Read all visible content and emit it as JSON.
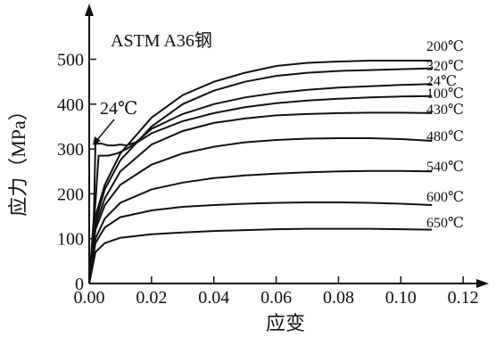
{
  "chart_data": {
    "type": "line",
    "title": "ASTM A36钢",
    "xlabel": "应变",
    "ylabel": "应力（MPa）",
    "xlim": [
      0,
      0.13
    ],
    "ylim": [
      0,
      560
    ],
    "x_ticks": [
      "0.00",
      "0.02",
      "0.04",
      "0.06",
      "0.08",
      "0.10",
      "0.12"
    ],
    "y_ticks": [
      "0",
      "100",
      "200",
      "300",
      "400",
      "500"
    ],
    "annotation": "24℃",
    "series": [
      {
        "name": "200℃",
        "points": [
          [
            0,
            0
          ],
          [
            0.002,
            150
          ],
          [
            0.005,
            220
          ],
          [
            0.01,
            290
          ],
          [
            0.02,
            370
          ],
          [
            0.03,
            420
          ],
          [
            0.04,
            450
          ],
          [
            0.05,
            470
          ],
          [
            0.06,
            485
          ],
          [
            0.07,
            492
          ],
          [
            0.08,
            495
          ],
          [
            0.09,
            497
          ],
          [
            0.1,
            497
          ],
          [
            0.11,
            497
          ]
        ]
      },
      {
        "name": "320℃",
        "points": [
          [
            0,
            0
          ],
          [
            0.002,
            140
          ],
          [
            0.005,
            210
          ],
          [
            0.01,
            275
          ],
          [
            0.02,
            350
          ],
          [
            0.03,
            400
          ],
          [
            0.04,
            430
          ],
          [
            0.05,
            450
          ],
          [
            0.06,
            463
          ],
          [
            0.07,
            470
          ],
          [
            0.08,
            474
          ],
          [
            0.09,
            476
          ],
          [
            0.1,
            478
          ],
          [
            0.11,
            480
          ]
        ]
      },
      {
        "name": "24℃",
        "points": [
          [
            0,
            0
          ],
          [
            0.0015,
            150
          ],
          [
            0.002,
            312
          ],
          [
            0.004,
            312
          ],
          [
            0.006,
            308
          ],
          [
            0.008,
            308
          ],
          [
            0.01,
            310
          ],
          [
            0.012,
            308
          ],
          [
            0.015,
            315
          ],
          [
            0.02,
            345
          ],
          [
            0.03,
            378
          ],
          [
            0.04,
            400
          ],
          [
            0.05,
            415
          ],
          [
            0.06,
            425
          ],
          [
            0.07,
            432
          ],
          [
            0.08,
            437
          ],
          [
            0.09,
            440
          ],
          [
            0.1,
            443
          ],
          [
            0.11,
            445
          ]
        ]
      },
      {
        "name": "100℃",
        "points": [
          [
            0,
            0
          ],
          [
            0.002,
            180
          ],
          [
            0.003,
            285
          ],
          [
            0.006,
            285
          ],
          [
            0.009,
            290
          ],
          [
            0.012,
            300
          ],
          [
            0.02,
            335
          ],
          [
            0.03,
            362
          ],
          [
            0.04,
            380
          ],
          [
            0.05,
            393
          ],
          [
            0.06,
            402
          ],
          [
            0.07,
            408
          ],
          [
            0.08,
            412
          ],
          [
            0.09,
            415
          ],
          [
            0.1,
            417
          ],
          [
            0.11,
            418
          ]
        ]
      },
      {
        "name": "430℃",
        "points": [
          [
            0,
            0
          ],
          [
            0.002,
            130
          ],
          [
            0.005,
            190
          ],
          [
            0.01,
            250
          ],
          [
            0.02,
            310
          ],
          [
            0.03,
            340
          ],
          [
            0.04,
            358
          ],
          [
            0.05,
            368
          ],
          [
            0.06,
            375
          ],
          [
            0.07,
            378
          ],
          [
            0.08,
            380
          ],
          [
            0.09,
            381
          ],
          [
            0.1,
            381
          ],
          [
            0.11,
            380
          ]
        ]
      },
      {
        "name": "480℃",
        "points": [
          [
            0,
            0
          ],
          [
            0.002,
            120
          ],
          [
            0.005,
            175
          ],
          [
            0.01,
            220
          ],
          [
            0.02,
            265
          ],
          [
            0.03,
            290
          ],
          [
            0.04,
            305
          ],
          [
            0.05,
            315
          ],
          [
            0.06,
            320
          ],
          [
            0.07,
            323
          ],
          [
            0.08,
            324
          ],
          [
            0.09,
            324
          ],
          [
            0.1,
            322
          ],
          [
            0.11,
            318
          ]
        ]
      },
      {
        "name": "540℃",
        "points": [
          [
            0,
            0
          ],
          [
            0.002,
            100
          ],
          [
            0.005,
            145
          ],
          [
            0.01,
            180
          ],
          [
            0.02,
            210
          ],
          [
            0.03,
            225
          ],
          [
            0.04,
            235
          ],
          [
            0.05,
            241
          ],
          [
            0.06,
            245
          ],
          [
            0.07,
            248
          ],
          [
            0.08,
            250
          ],
          [
            0.09,
            251
          ],
          [
            0.1,
            251
          ],
          [
            0.11,
            250
          ]
        ]
      },
      {
        "name": "600℃",
        "points": [
          [
            0,
            0
          ],
          [
            0.002,
            90
          ],
          [
            0.005,
            125
          ],
          [
            0.01,
            148
          ],
          [
            0.02,
            163
          ],
          [
            0.03,
            171
          ],
          [
            0.04,
            175
          ],
          [
            0.05,
            178
          ],
          [
            0.06,
            180
          ],
          [
            0.07,
            181
          ],
          [
            0.08,
            181
          ],
          [
            0.09,
            180
          ],
          [
            0.1,
            178
          ],
          [
            0.11,
            175
          ]
        ]
      },
      {
        "name": "650℃",
        "points": [
          [
            0,
            0
          ],
          [
            0.002,
            70
          ],
          [
            0.005,
            90
          ],
          [
            0.01,
            102
          ],
          [
            0.02,
            110
          ],
          [
            0.03,
            114
          ],
          [
            0.04,
            117
          ],
          [
            0.05,
            119
          ],
          [
            0.06,
            121
          ],
          [
            0.07,
            122
          ],
          [
            0.08,
            122
          ],
          [
            0.09,
            122
          ],
          [
            0.1,
            121
          ],
          [
            0.11,
            120
          ]
        ]
      }
    ]
  }
}
